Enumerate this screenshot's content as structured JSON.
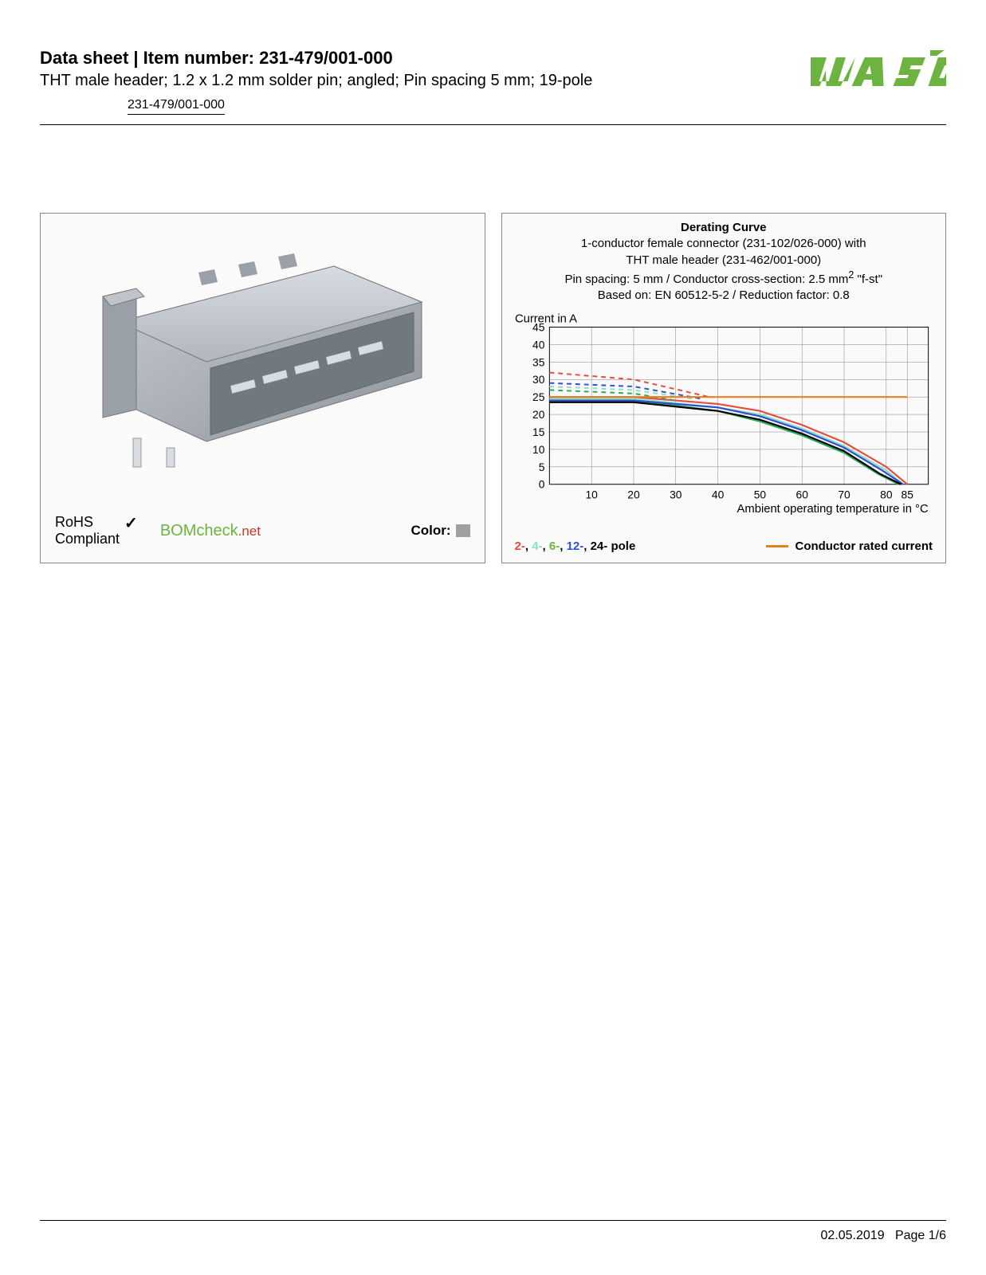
{
  "header": {
    "title": "Data sheet  |  Item number: 231-479/001-000",
    "subtitle": "THT male header; 1.2 x 1.2 mm solder pin; angled; Pin spacing 5 mm; 19-pole",
    "part_link": "231-479/001-000",
    "logo_color": "#6db33f"
  },
  "left_panel": {
    "product_color": "#a6adb5",
    "rohs_line1": "RoHS",
    "rohs_line2": "Compliant",
    "bomcheck_text": "BOMcheck",
    "bomcheck_suffix": ".net",
    "color_label": "Color:",
    "color_swatch": "#a0a0a0"
  },
  "chart": {
    "title": "Derating Curve",
    "desc1": "1-conductor female connector (231-102/026-000) with",
    "desc2": "THT male header (231-462/001-000)",
    "desc3_a": "Pin spacing: 5 mm / Conductor cross-section: 2.5 mm",
    "desc3_b": " \"f-st\"",
    "desc4": "Based on: EN 60512-5-2 / Reduction factor: 0.8",
    "y_label": "Current in A",
    "x_label": "Ambient operating temperature in °C",
    "y_ticks": [
      0,
      5,
      10,
      15,
      20,
      25,
      30,
      35,
      40,
      45
    ],
    "x_ticks": [
      10,
      20,
      30,
      40,
      50,
      60,
      70,
      80,
      85
    ],
    "xlim": [
      0,
      90
    ],
    "ylim": [
      0,
      45
    ],
    "grid_color": "#808080",
    "background_color": "#ffffff",
    "label_fontsize": 15,
    "tick_fontsize": 14,
    "series": {
      "red": {
        "color": "#e74c3c",
        "solid": [
          [
            0,
            25
          ],
          [
            20,
            25
          ],
          [
            40,
            23
          ],
          [
            50,
            21
          ],
          [
            60,
            17
          ],
          [
            70,
            12
          ],
          [
            80,
            5
          ],
          [
            85,
            0
          ]
        ],
        "dash": [
          [
            0,
            32
          ],
          [
            20,
            30
          ],
          [
            38,
            25
          ]
        ]
      },
      "lightteal": {
        "color": "#8fe0c0",
        "solid": [
          [
            0,
            24.5
          ],
          [
            20,
            24.5
          ],
          [
            40,
            22
          ],
          [
            50,
            20
          ],
          [
            60,
            16
          ],
          [
            70,
            11
          ],
          [
            80,
            4
          ],
          [
            84,
            0
          ]
        ],
        "dash": [
          [
            0,
            28
          ],
          [
            20,
            27
          ],
          [
            34,
            24.5
          ]
        ]
      },
      "green": {
        "color": "#27ae60",
        "solid": [
          [
            0,
            24
          ],
          [
            20,
            24
          ],
          [
            40,
            21
          ],
          [
            50,
            18
          ],
          [
            60,
            14
          ],
          [
            70,
            9
          ],
          [
            78,
            3
          ],
          [
            83,
            0
          ]
        ],
        "dash": [
          [
            0,
            27
          ],
          [
            20,
            26
          ],
          [
            30,
            24
          ]
        ]
      },
      "blue": {
        "color": "#2e4fd8",
        "solid": [
          [
            0,
            24
          ],
          [
            20,
            24
          ],
          [
            40,
            22
          ],
          [
            50,
            19.5
          ],
          [
            60,
            15.5
          ],
          [
            70,
            10.5
          ],
          [
            79,
            4
          ],
          [
            84,
            0
          ]
        ],
        "dash": [
          [
            0,
            29
          ],
          [
            20,
            28
          ],
          [
            36,
            24.5
          ]
        ]
      },
      "black": {
        "color": "#000000",
        "solid": [
          [
            0,
            23.5
          ],
          [
            20,
            23.5
          ],
          [
            40,
            21
          ],
          [
            50,
            18.5
          ],
          [
            60,
            14.5
          ],
          [
            70,
            9.5
          ],
          [
            78.5,
            3
          ],
          [
            83.5,
            0
          ]
        ]
      },
      "orange": {
        "color": "#e67e22",
        "solid": [
          [
            0,
            25
          ],
          [
            85,
            25
          ]
        ]
      }
    },
    "legend_poles": "2-, 4-, 6-, 12-, 24- pole",
    "legend_rated": "Conductor rated current"
  },
  "footer": {
    "date": "02.05.2019",
    "page": "Page 1/6"
  }
}
